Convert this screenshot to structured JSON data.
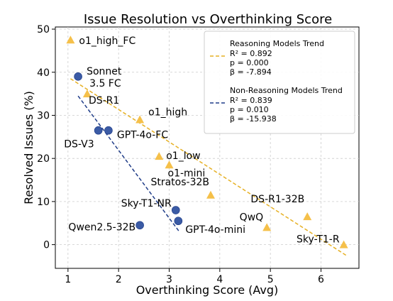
{
  "chart_data": {
    "type": "scatter",
    "title": "Issue Resolution vs Overthinking Score",
    "xlabel": "Overthinking Score (Avg)",
    "ylabel": "Resolved Issues (%)",
    "xlim": [
      0.75,
      6.75
    ],
    "ylim": [
      -5.5,
      50.5
    ],
    "xticks": [
      "1",
      "2",
      "3",
      "4",
      "5",
      "6"
    ],
    "yticks": [
      "0",
      "10",
      "20",
      "30",
      "40",
      "50"
    ],
    "grid": true,
    "legend_position": "top-right",
    "colors": {
      "reasoning": "#f5c04a",
      "non_reasoning": "#3b5ba5",
      "reasoning_line": "#e6b023",
      "non_reasoning_line": "#1f3c88"
    },
    "series": [
      {
        "group": "reasoning",
        "marker": "triangle",
        "points": [
          {
            "label": "o1_high_FC",
            "x": 1.05,
            "y": 47.5
          },
          {
            "label": "DS-R1",
            "x": 1.38,
            "y": 35.0
          },
          {
            "label": "o1_high",
            "x": 2.42,
            "y": 29.0
          },
          {
            "label": "o1_low",
            "x": 2.8,
            "y": 20.5
          },
          {
            "label": "o1-mini",
            "x": 3.0,
            "y": 18.5
          },
          {
            "label": "Stratos-32B",
            "x": 3.82,
            "y": 11.5
          },
          {
            "label": "QwQ",
            "x": 4.93,
            "y": 4.0
          },
          {
            "label": "DS-R1-32B",
            "x": 5.73,
            "y": 6.5
          },
          {
            "label": "Sky-T1-R",
            "x": 6.45,
            "y": 0.0
          }
        ]
      },
      {
        "group": "non_reasoning",
        "marker": "circle",
        "points": [
          {
            "label": "Sonnet 3.5 FC",
            "x": 1.2,
            "y": 39.0
          },
          {
            "label": "DS-V3",
            "x": 1.6,
            "y": 26.5
          },
          {
            "label": "GPT-4o-FC",
            "x": 1.8,
            "y": 26.5
          },
          {
            "label": "Sky-T1-NR",
            "x": 3.13,
            "y": 8.0
          },
          {
            "label": "GPT-4o-mini",
            "x": 3.18,
            "y": 5.5
          },
          {
            "label": "Qwen2.5-32B",
            "x": 2.42,
            "y": 4.5
          }
        ]
      }
    ],
    "trendlines": [
      {
        "group": "reasoning",
        "x1": 1.05,
        "y1": 38.5,
        "x2": 6.5,
        "y2": -2.5,
        "style": "dashed"
      },
      {
        "group": "non_reasoning",
        "x1": 1.2,
        "y1": 34.5,
        "x2": 3.2,
        "y2": 3.0,
        "style": "dashed"
      }
    ],
    "legend": [
      {
        "group": "reasoning",
        "title": "Reasoning Models Trend",
        "lines": [
          "R² = 0.892",
          "p = 0.000",
          "β = -7.894"
        ]
      },
      {
        "group": "non_reasoning",
        "title": "Non-Reasoning Models Trend",
        "lines": [
          "R² = 0.839",
          "p = 0.010",
          "β = -15.938"
        ]
      }
    ]
  }
}
